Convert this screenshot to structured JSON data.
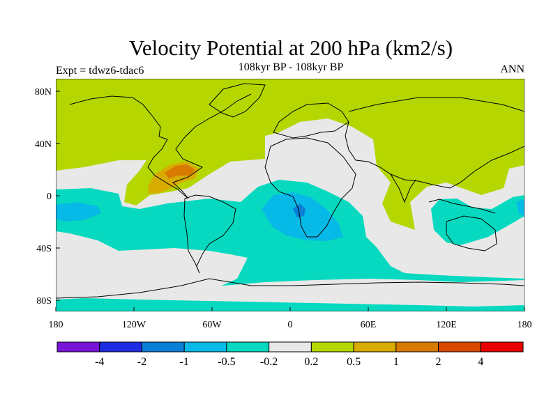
{
  "figure": {
    "title": "Velocity Potential at 200 hPa (km2/s)",
    "subtitle": "108kyr BP - 108kyr BP",
    "left_label": "Expt = tdwz6-tdac6",
    "right_label": "ANN"
  },
  "axes": {
    "x_ticks": [
      "180",
      "120W",
      "60W",
      "0",
      "60E",
      "120E",
      "180"
    ],
    "y_ticks": [
      "80N",
      "40N",
      "0",
      "40S",
      "80S"
    ]
  },
  "colorbar": {
    "colors": [
      "#7a13d8",
      "#1f2be0",
      "#0a7fd6",
      "#07b9e6",
      "#06d9bf",
      "#e8e8e8",
      "#b5d600",
      "#d8ab00",
      "#d97a00",
      "#d94a00",
      "#e80000"
    ],
    "labels": [
      "-4",
      "-2",
      "-1",
      "-0.5",
      "-0.2",
      "0.2",
      "0.5",
      "1",
      "2",
      "4"
    ]
  },
  "colors": {
    "neutral": "#e8e8e8",
    "pos_low": "#b5d600",
    "pos_mid": "#d8ab00",
    "pos_high": "#d97a00",
    "neg_low": "#06d9bf",
    "neg_mid": "#07b9e6",
    "neg_high": "#0a7fd6"
  }
}
